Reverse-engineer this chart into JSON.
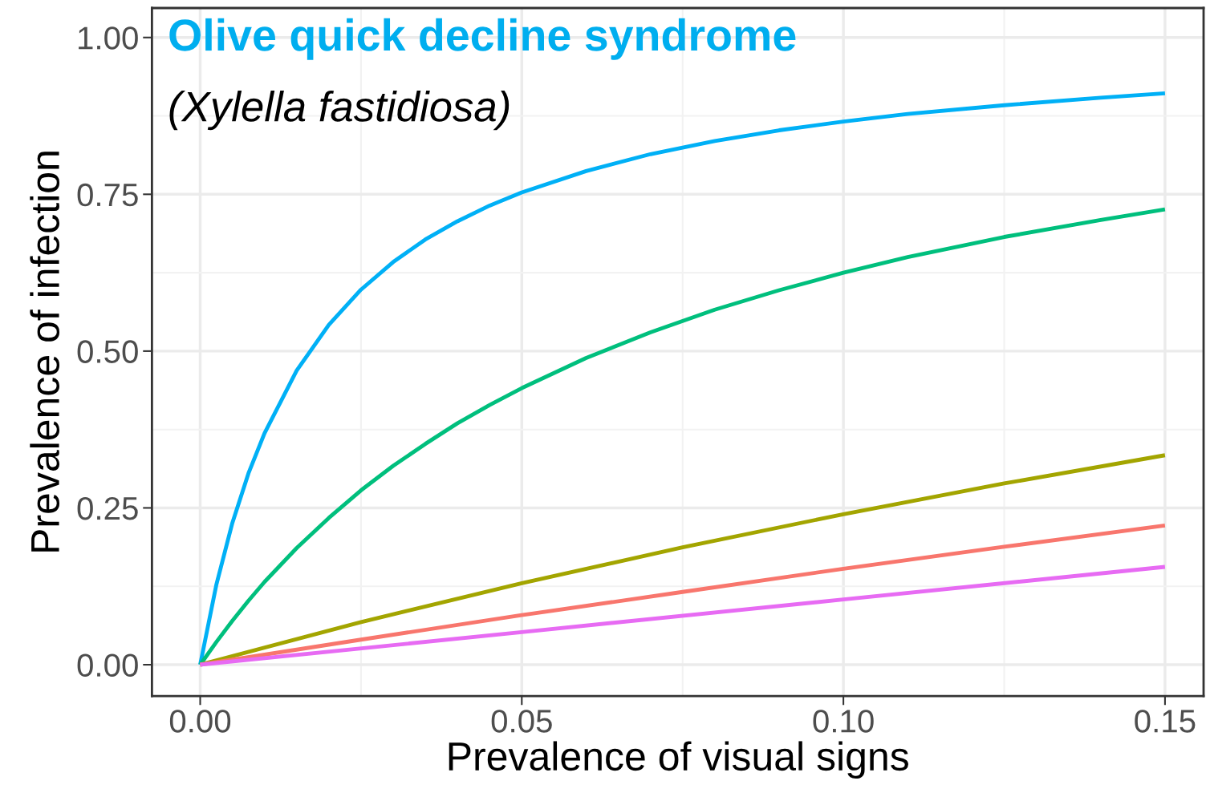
{
  "chart_data": {
    "type": "line",
    "title": "Olive quick decline syndrome",
    "annotations": [
      "(Xylella fastidiosa)"
    ],
    "xlabel": "Prevalence of visual signs",
    "ylabel": "Prevalence of infection",
    "xlim": [
      -0.0075,
      0.156
    ],
    "ylim": [
      -0.05,
      1.047
    ],
    "xticks": [
      {
        "value": 0,
        "label": "0.00"
      },
      0.05,
      {
        "value": 0.1,
        "label": "0.10"
      },
      0.15
    ],
    "yticks": [
      {
        "value": 0,
        "label": "0.00"
      },
      0.25,
      {
        "value": 0.5,
        "label": "0.50"
      },
      0.75,
      {
        "value": 1,
        "label": "1.00"
      }
    ],
    "grid": true,
    "line_style": "solid",
    "marker": "none",
    "series": [
      {
        "color": "#00b0f6",
        "x": [
          0,
          0.0025,
          0.005,
          0.0075,
          0.01,
          0.015,
          0.02,
          0.025,
          0.03,
          0.035,
          0.04,
          0.045,
          0.05,
          0.06,
          0.07,
          0.08,
          0.09,
          0.1,
          0.11,
          0.125,
          0.14,
          0.15
        ],
        "values": [
          0,
          0.127,
          0.226,
          0.305,
          0.369,
          0.469,
          0.542,
          0.598,
          0.642,
          0.678,
          0.707,
          0.732,
          0.753,
          0.787,
          0.814,
          0.835,
          0.852,
          0.866,
          0.878,
          0.892,
          0.904,
          0.911
        ]
      },
      {
        "color": "#00bf7d",
        "x": [
          0,
          0.0025,
          0.005,
          0.0075,
          0.01,
          0.015,
          0.02,
          0.025,
          0.03,
          0.035,
          0.04,
          0.045,
          0.05,
          0.06,
          0.07,
          0.08,
          0.09,
          0.1,
          0.11,
          0.125,
          0.14,
          0.15
        ],
        "values": [
          0,
          0.036,
          0.07,
          0.102,
          0.132,
          0.186,
          0.234,
          0.278,
          0.317,
          0.352,
          0.385,
          0.414,
          0.441,
          0.489,
          0.53,
          0.566,
          0.597,
          0.625,
          0.65,
          0.682,
          0.709,
          0.726
        ]
      },
      {
        "color": "#a3a500",
        "x": [
          0,
          0.025,
          0.05,
          0.075,
          0.1,
          0.125,
          0.15
        ],
        "values": [
          0,
          0.068,
          0.13,
          0.187,
          0.24,
          0.289,
          0.334
        ]
      },
      {
        "color": "#f8766d",
        "x": [
          0,
          0.025,
          0.05,
          0.075,
          0.1,
          0.125,
          0.15
        ],
        "values": [
          0,
          0.04,
          0.079,
          0.116,
          0.153,
          0.188,
          0.222
        ]
      },
      {
        "color": "#e76bf3",
        "x": [
          0,
          0.05,
          0.1,
          0.15
        ],
        "values": [
          0,
          0.052,
          0.104,
          0.156
        ]
      }
    ]
  }
}
